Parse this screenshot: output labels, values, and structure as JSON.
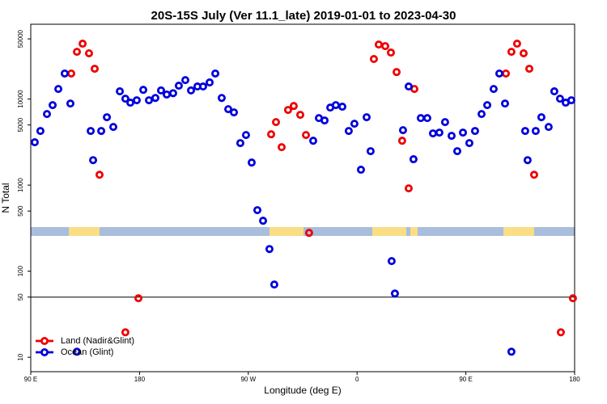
{
  "chart_data": {
    "type": "scatter",
    "title": "20S-15S July (Ver 11.1_late)   2019-01-01 to 2023-04-30",
    "xlabel": "Longitude (deg E)",
    "ylabel": "N Total",
    "xlim": [
      90,
      540
    ],
    "xticks": [
      {
        "value": 90,
        "label": "90 E"
      },
      180,
      {
        "value": 270,
        "label": "90 W"
      },
      {
        "value": 360,
        "label": "0"
      },
      {
        "value": 450,
        "label": "90 E"
      },
      {
        "value": 540,
        "label": "180"
      }
    ],
    "ylim": [
      6.8,
      74000
    ],
    "log_y": true,
    "yticks": [
      10,
      50,
      100,
      500,
      1000,
      5000,
      10000,
      50000
    ],
    "hline": 50,
    "legend": "lower left",
    "series": [
      {
        "name": "Land (Nadir&Glint)",
        "color": "#ee0000",
        "x": [
          123.5,
          128.2,
          132.9,
          138.2,
          142.9,
          146.9,
          168.3,
          179.1,
          288.9,
          292.9,
          297.6,
          302.9,
          307.6,
          313.0,
          317.7,
          320.3,
          373.9,
          377.9,
          383.3,
          388.0,
          392.7,
          397.3,
          402.7,
          407.4,
          483.1,
          487.7,
          492.4,
          497.8,
          502.5,
          506.5,
          528.6,
          538.6
        ],
        "values": [
          19800,
          35400,
          44000,
          34000,
          22500,
          1320,
          19.5,
          48.5,
          3900,
          5400,
          2760,
          7470,
          8310,
          6560,
          3820,
          279,
          29200,
          43000,
          41200,
          34700,
          20600,
          3280,
          917,
          13100,
          19800,
          35400,
          44000,
          34000,
          22500,
          1320,
          19.5,
          48.5
        ]
      },
      {
        "name": "Ocean (Glint)",
        "color": "#0000dd",
        "x": [
          93.3,
          98.0,
          103.4,
          108.1,
          112.8,
          118.1,
          122.8,
          128.2,
          139.6,
          141.6,
          148.3,
          153.0,
          158.3,
          163.7,
          168.3,
          172.4,
          177.7,
          183.1,
          187.8,
          193.1,
          197.8,
          202.5,
          207.8,
          212.5,
          217.9,
          222.6,
          227.9,
          232.6,
          238.0,
          242.7,
          248.0,
          253.4,
          258.1,
          263.4,
          268.1,
          272.8,
          277.5,
          282.2,
          287.5,
          291.5,
          323.7,
          328.4,
          333.1,
          337.8,
          342.4,
          347.8,
          353.1,
          357.8,
          363.2,
          367.9,
          371.2,
          388.6,
          391.3,
          398.0,
          402.7,
          406.7,
          412.7,
          418.1,
          422.8,
          428.1,
          432.8,
          438.2,
          442.9,
          447.6,
          452.9,
          457.6,
          463.0,
          467.7,
          473.0,
          477.7,
          482.4,
          487.7,
          499.1,
          501.1,
          507.8,
          512.5,
          518.5,
          523.2,
          527.9,
          532.6,
          537.3
        ],
        "values": [
          3150,
          4260,
          6700,
          8500,
          13100,
          19800,
          8870,
          11.6,
          4260,
          1950,
          4260,
          6150,
          4740,
          12300,
          10100,
          9080,
          9680,
          12800,
          9680,
          10300,
          12600,
          11300,
          11700,
          14300,
          16600,
          12600,
          14000,
          14000,
          15600,
          19800,
          10300,
          7630,
          7000,
          3080,
          3820,
          1830,
          512,
          386,
          181,
          70,
          3280,
          6010,
          5640,
          7960,
          8500,
          8150,
          4260,
          5170,
          1510,
          6150,
          2480,
          131,
          55,
          4350,
          14000,
          2000,
          6010,
          6010,
          3990,
          4080,
          5400,
          3740,
          2480,
          4080,
          3080,
          4260,
          6700,
          8500,
          13100,
          19800,
          8870,
          11.6,
          4260,
          1950,
          4260,
          6150,
          4740,
          12300,
          10100,
          9080,
          9680
        ]
      }
    ]
  }
}
